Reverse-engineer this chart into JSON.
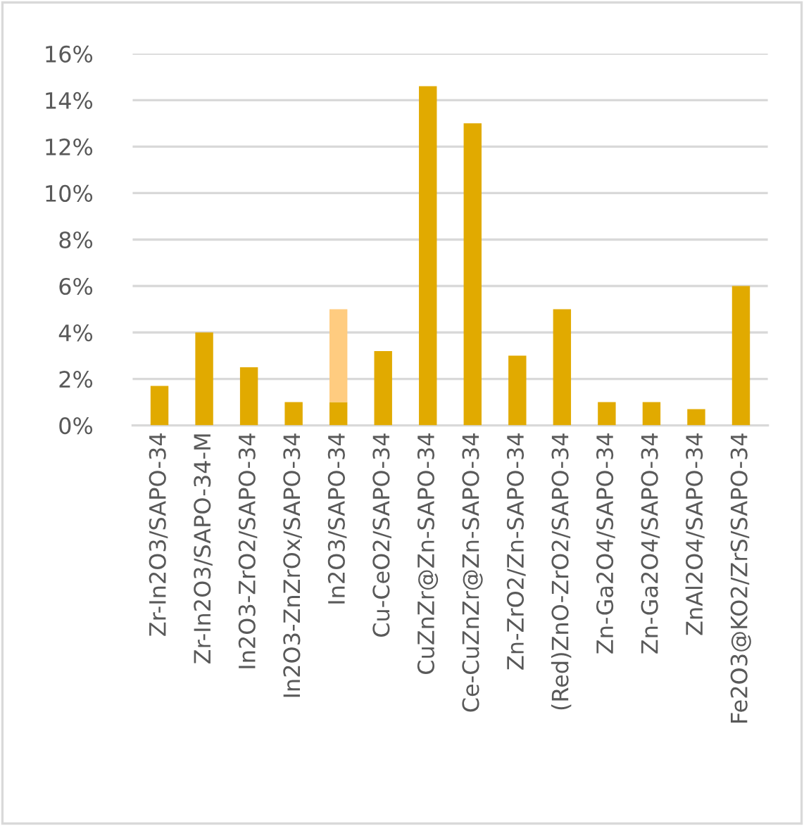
{
  "chart_data": {
    "type": "bar",
    "stacked": true,
    "categories": [
      "Zr-In2O3/SAPO-34",
      "Zr-In2O3/SAPO-34-M",
      "In2O3-ZrO2/SAPO-34",
      "In2O3-ZnZrOx/SAPO-34",
      "In2O3/SAPO-34",
      "Cu-CeO2/SAPO-34",
      "CuZnZr@Zn-SAPO-34",
      "Ce-CuZnZr@Zn-SAPO-34",
      "Zn-ZrO2/Zn-SAPO-34",
      "(Red)ZnO-ZrO2/SAPO-34",
      "Zn-Ga2O4/SAPO-34",
      "Zn-Ga2O4/SAPO-34",
      "ZnAl2O4/SAPO-34",
      "Fe2O3@KO2/ZrS/SAPO-34"
    ],
    "series": [
      {
        "color": "#e1aa00",
        "values": [
          1.7,
          4,
          2.5,
          1,
          1,
          3.2,
          14.6,
          13,
          3,
          5,
          1,
          1,
          0.7,
          6
        ]
      },
      {
        "color": "#ffcc80",
        "values": [
          null,
          null,
          null,
          null,
          4,
          null,
          null,
          null,
          null,
          null,
          null,
          null,
          null,
          null
        ]
      }
    ],
    "ylim": [
      0,
      16
    ],
    "yticks": [
      {
        "value": 0,
        "label": "0%"
      },
      {
        "value": 2,
        "label": "2%"
      },
      {
        "value": 4,
        "label": "4%"
      },
      {
        "value": 6,
        "label": "6%"
      },
      {
        "value": 8,
        "label": "8%"
      },
      {
        "value": 10,
        "label": "10%"
      },
      {
        "value": 12,
        "label": "12%"
      },
      {
        "value": 14,
        "label": "14%"
      },
      {
        "value": 16,
        "label": "16%"
      }
    ],
    "grid": "y",
    "legend": false
  }
}
